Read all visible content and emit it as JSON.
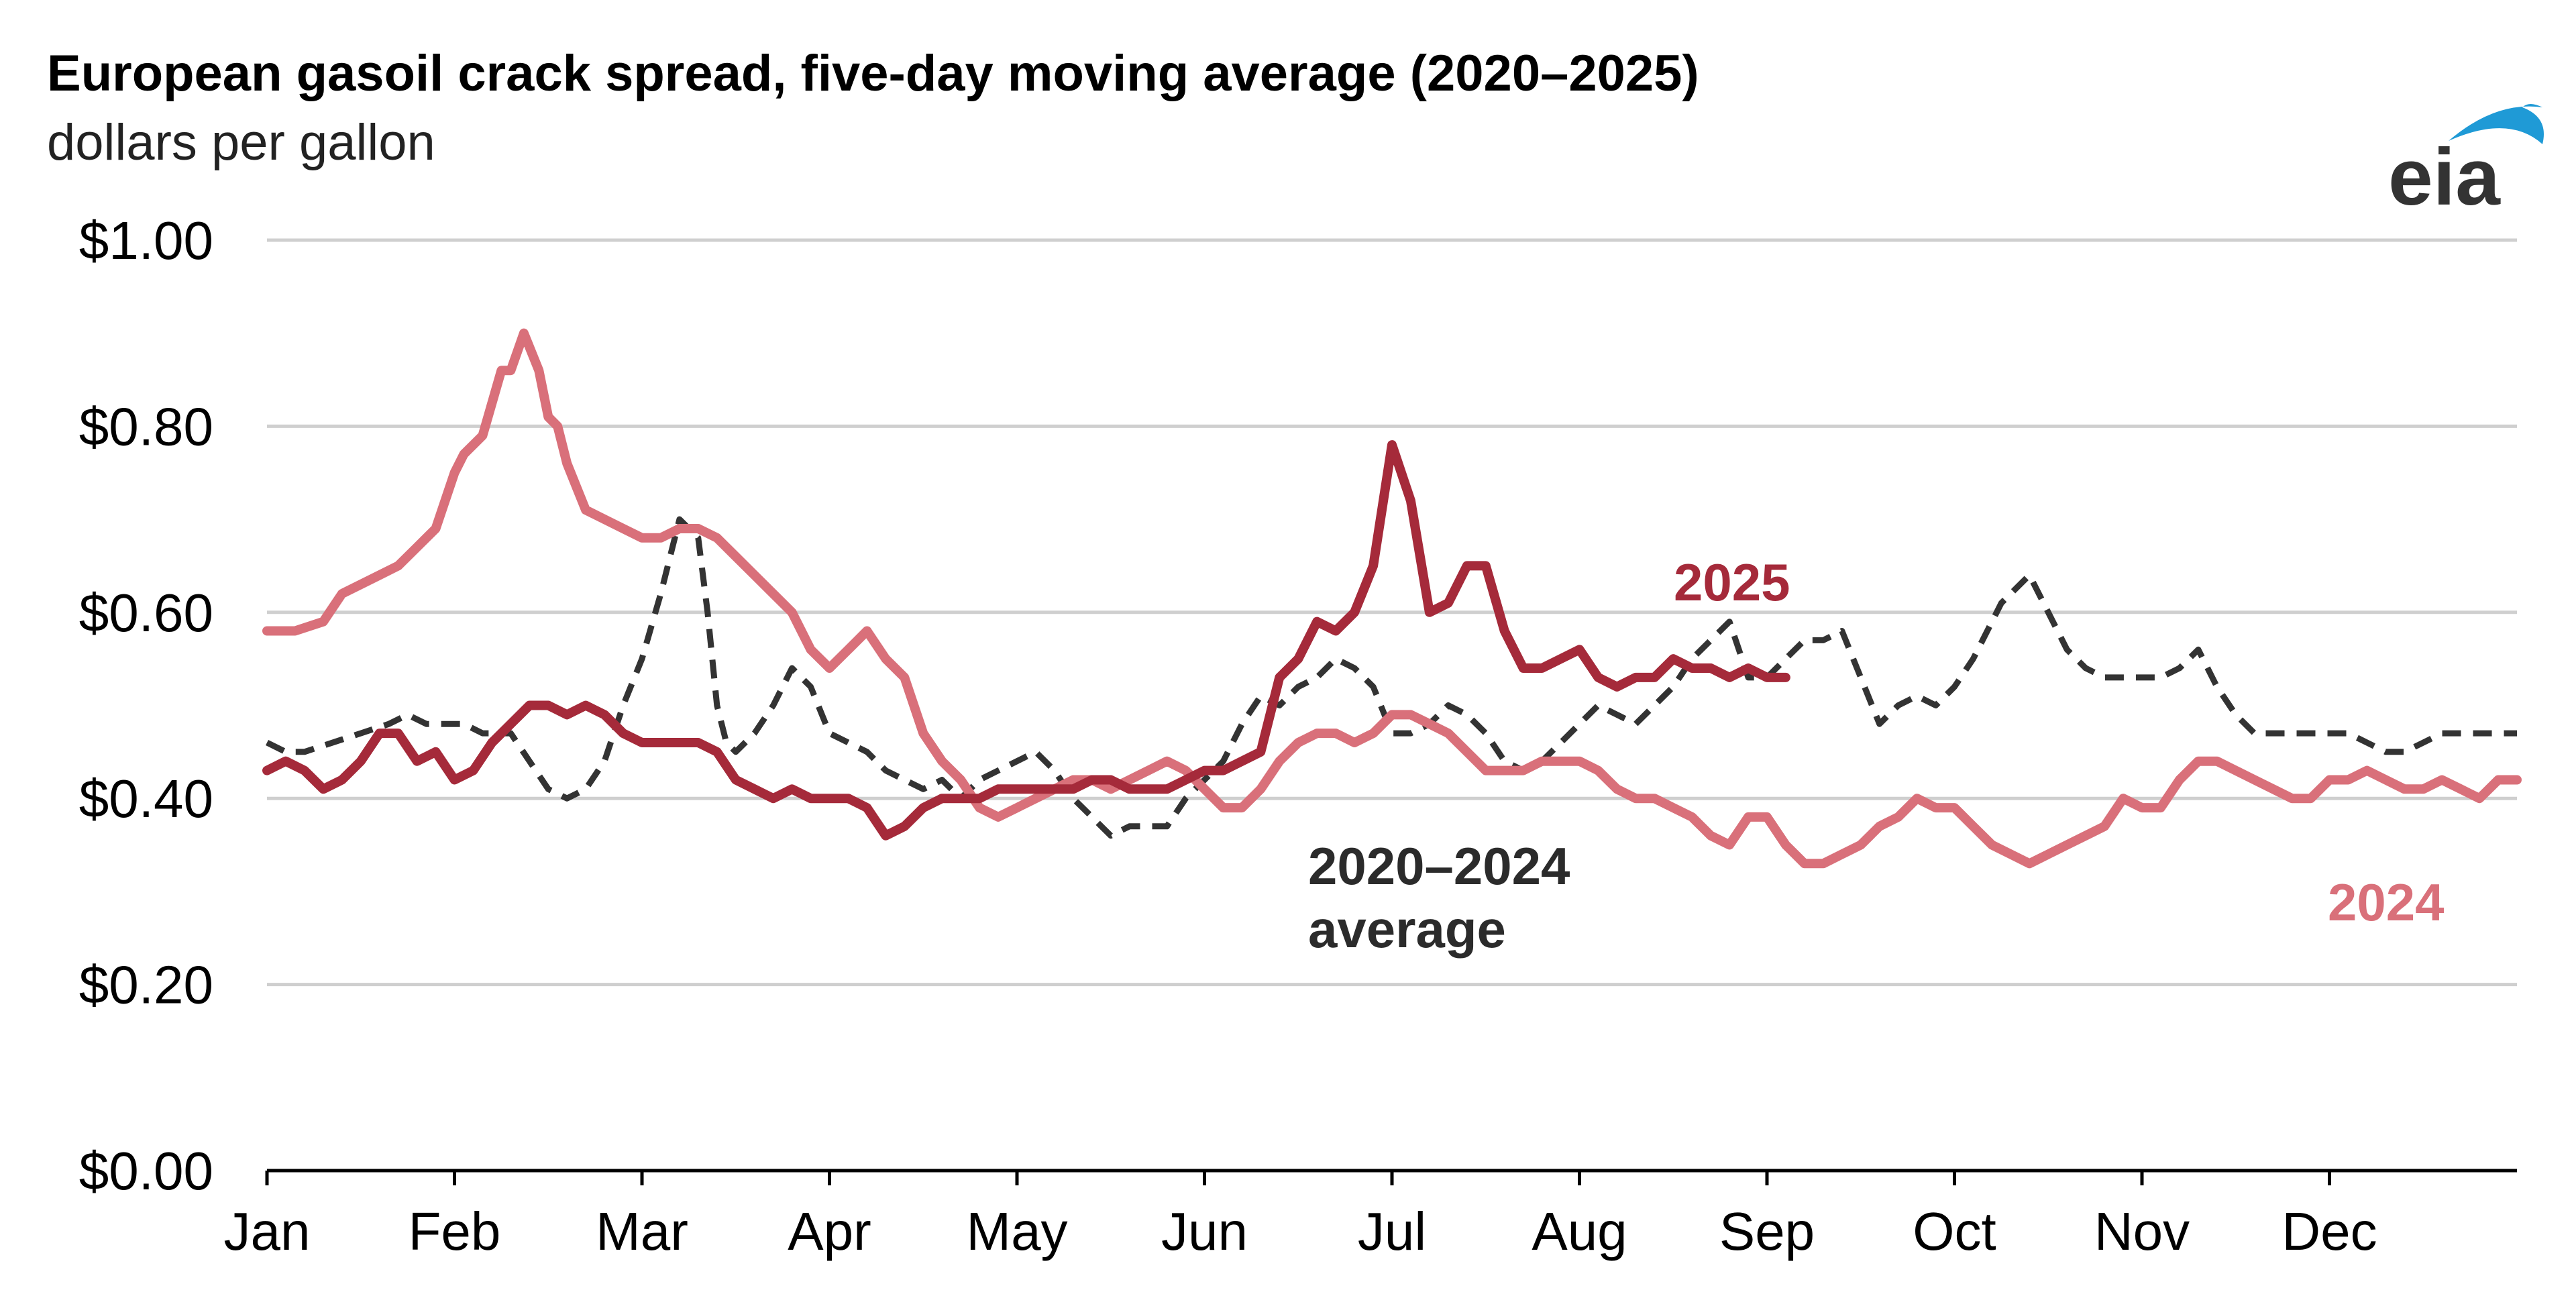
{
  "chart_data": {
    "type": "line",
    "title": "European gasoil crack spread, five-day moving average (2020–2025)",
    "subtitle": "dollars per gallon",
    "logo": "eia",
    "ylim": [
      0,
      1.0
    ],
    "yticks": [
      0.0,
      0.2,
      0.4,
      0.6,
      0.8,
      1.0
    ],
    "ytick_labels": [
      "$0.00",
      "$0.20",
      "$0.40",
      "$0.60",
      "$0.80",
      "$1.00"
    ],
    "xlim": [
      0,
      12
    ],
    "xtick_positions": [
      0,
      1,
      2,
      3,
      4,
      5,
      6,
      7,
      8,
      9,
      10,
      11
    ],
    "xtick_labels": [
      "Jan",
      "Feb",
      "Mar",
      "Apr",
      "May",
      "Jun",
      "Jul",
      "Aug",
      "Sep",
      "Oct",
      "Nov",
      "Dec"
    ],
    "grid": true,
    "series": [
      {
        "name": "2020–2024 average",
        "label_lines": [
          "2020–2024",
          "average"
        ],
        "color": "#333333",
        "style": "dashed",
        "x": [
          0,
          0.1,
          0.2,
          0.35,
          0.5,
          0.65,
          0.75,
          0.85,
          0.95,
          1.05,
          1.15,
          1.3,
          1.4,
          1.5,
          1.6,
          1.7,
          1.8,
          1.9,
          2.0,
          2.1,
          2.2,
          2.3,
          2.35,
          2.4,
          2.45,
          2.5,
          2.55,
          2.6,
          2.7,
          2.8,
          2.9,
          3.0,
          3.1,
          3.2,
          3.3,
          3.4,
          3.5,
          3.6,
          3.7,
          3.8,
          3.9,
          4.0,
          4.1,
          4.2,
          4.3,
          4.4,
          4.5,
          4.6,
          4.7,
          4.8,
          4.9,
          5.0,
          5.1,
          5.2,
          5.3,
          5.4,
          5.5,
          5.6,
          5.7,
          5.8,
          5.9,
          6.0,
          6.1,
          6.2,
          6.3,
          6.4,
          6.5,
          6.6,
          6.7,
          6.8,
          6.9,
          7.0,
          7.1,
          7.2,
          7.3,
          7.4,
          7.5,
          7.6,
          7.7,
          7.8,
          7.9,
          8.0,
          8.1,
          8.2,
          8.3,
          8.4,
          8.5,
          8.6,
          8.7,
          8.8,
          8.9,
          9.0,
          9.1,
          9.2,
          9.25,
          9.3,
          9.4,
          9.5,
          9.6,
          9.7,
          9.8,
          9.9,
          10.0,
          10.1,
          10.2,
          10.3,
          10.4,
          10.5,
          10.6,
          10.7,
          10.8,
          10.9,
          11.0,
          11.1,
          11.2,
          11.3,
          11.4,
          11.5,
          11.6,
          11.7,
          11.8,
          11.9,
          12.0
        ],
        "y": [
          0.46,
          0.45,
          0.45,
          0.46,
          0.47,
          0.48,
          0.49,
          0.48,
          0.48,
          0.48,
          0.47,
          0.47,
          0.44,
          0.41,
          0.4,
          0.41,
          0.44,
          0.5,
          0.55,
          0.62,
          0.7,
          0.68,
          0.6,
          0.5,
          0.46,
          0.45,
          0.46,
          0.47,
          0.5,
          0.54,
          0.52,
          0.47,
          0.46,
          0.45,
          0.43,
          0.42,
          0.41,
          0.42,
          0.4,
          0.42,
          0.43,
          0.44,
          0.45,
          0.43,
          0.4,
          0.38,
          0.36,
          0.37,
          0.37,
          0.37,
          0.4,
          0.42,
          0.44,
          0.48,
          0.51,
          0.5,
          0.52,
          0.53,
          0.55,
          0.54,
          0.52,
          0.47,
          0.47,
          0.48,
          0.5,
          0.49,
          0.47,
          0.44,
          0.43,
          0.44,
          0.46,
          0.48,
          0.5,
          0.49,
          0.48,
          0.5,
          0.52,
          0.55,
          0.57,
          0.59,
          0.53,
          0.53,
          0.55,
          0.57,
          0.57,
          0.58,
          0.53,
          0.48,
          0.5,
          0.51,
          0.5,
          0.52,
          0.55,
          0.59,
          0.61,
          0.62,
          0.64,
          0.6,
          0.56,
          0.54,
          0.53,
          0.53,
          0.53,
          0.53,
          0.54,
          0.56,
          0.52,
          0.49,
          0.47,
          0.47,
          0.47,
          0.47,
          0.47,
          0.47,
          0.46,
          0.45,
          0.45,
          0.46,
          0.47,
          0.47,
          0.47,
          0.47,
          0.47
        ]
      },
      {
        "name": "2024",
        "label_lines": [
          "2024"
        ],
        "color": "#d9707a",
        "style": "solid",
        "x": [
          0,
          0.15,
          0.3,
          0.4,
          0.5,
          0.6,
          0.7,
          0.8,
          0.9,
          1.0,
          1.05,
          1.15,
          1.25,
          1.3,
          1.37,
          1.45,
          1.5,
          1.55,
          1.6,
          1.7,
          1.8,
          1.9,
          2.0,
          2.1,
          2.2,
          2.3,
          2.4,
          2.5,
          2.6,
          2.7,
          2.8,
          2.9,
          3.0,
          3.1,
          3.2,
          3.3,
          3.4,
          3.5,
          3.6,
          3.7,
          3.8,
          3.9,
          4.0,
          4.1,
          4.2,
          4.3,
          4.4,
          4.5,
          4.6,
          4.7,
          4.8,
          4.9,
          5.0,
          5.1,
          5.2,
          5.3,
          5.4,
          5.5,
          5.6,
          5.7,
          5.8,
          5.9,
          6.0,
          6.1,
          6.2,
          6.3,
          6.4,
          6.5,
          6.6,
          6.7,
          6.8,
          6.9,
          7.0,
          7.1,
          7.2,
          7.3,
          7.4,
          7.5,
          7.6,
          7.7,
          7.8,
          7.9,
          8.0,
          8.1,
          8.2,
          8.3,
          8.4,
          8.5,
          8.6,
          8.7,
          8.8,
          8.9,
          9.0,
          9.1,
          9.2,
          9.3,
          9.4,
          9.5,
          9.6,
          9.7,
          9.8,
          9.9,
          10.0,
          10.1,
          10.2,
          10.3,
          10.4,
          10.5,
          10.6,
          10.7,
          10.8,
          10.9,
          11.0,
          11.1,
          11.2,
          11.3,
          11.4,
          11.5,
          11.6,
          11.7,
          11.8,
          11.9,
          12.0
        ],
        "y": [
          0.58,
          0.58,
          0.59,
          0.62,
          0.63,
          0.64,
          0.65,
          0.67,
          0.69,
          0.75,
          0.77,
          0.79,
          0.86,
          0.86,
          0.9,
          0.86,
          0.81,
          0.8,
          0.76,
          0.71,
          0.7,
          0.69,
          0.68,
          0.68,
          0.69,
          0.69,
          0.68,
          0.66,
          0.64,
          0.62,
          0.6,
          0.56,
          0.54,
          0.56,
          0.58,
          0.55,
          0.53,
          0.47,
          0.44,
          0.42,
          0.39,
          0.38,
          0.39,
          0.4,
          0.41,
          0.42,
          0.42,
          0.41,
          0.42,
          0.43,
          0.44,
          0.43,
          0.41,
          0.39,
          0.39,
          0.41,
          0.44,
          0.46,
          0.47,
          0.47,
          0.46,
          0.47,
          0.49,
          0.49,
          0.48,
          0.47,
          0.45,
          0.43,
          0.43,
          0.43,
          0.44,
          0.44,
          0.44,
          0.43,
          0.41,
          0.4,
          0.4,
          0.39,
          0.38,
          0.36,
          0.35,
          0.38,
          0.38,
          0.35,
          0.33,
          0.33,
          0.34,
          0.35,
          0.37,
          0.38,
          0.4,
          0.39,
          0.39,
          0.37,
          0.35,
          0.34,
          0.33,
          0.34,
          0.35,
          0.36,
          0.37,
          0.4,
          0.39,
          0.39,
          0.42,
          0.44,
          0.44,
          0.43,
          0.42,
          0.41,
          0.4,
          0.4,
          0.42,
          0.42,
          0.43,
          0.42,
          0.41,
          0.41,
          0.42,
          0.41,
          0.4,
          0.42,
          0.42
        ]
      },
      {
        "name": "2025",
        "label_lines": [
          "2025"
        ],
        "color": "#a52a3a",
        "style": "solid",
        "x": [
          0,
          0.1,
          0.2,
          0.3,
          0.4,
          0.5,
          0.6,
          0.7,
          0.8,
          0.9,
          1.0,
          1.1,
          1.2,
          1.3,
          1.4,
          1.5,
          1.6,
          1.7,
          1.8,
          1.9,
          2.0,
          2.1,
          2.2,
          2.3,
          2.4,
          2.5,
          2.6,
          2.7,
          2.8,
          2.9,
          3.0,
          3.1,
          3.2,
          3.3,
          3.4,
          3.5,
          3.6,
          3.7,
          3.8,
          3.9,
          4.0,
          4.1,
          4.2,
          4.3,
          4.4,
          4.5,
          4.6,
          4.7,
          4.8,
          4.9,
          5.0,
          5.1,
          5.2,
          5.3,
          5.4,
          5.5,
          5.6,
          5.7,
          5.8,
          5.9,
          6.0,
          6.1,
          6.2,
          6.3,
          6.4,
          6.5,
          6.6,
          6.7,
          6.8,
          6.9,
          7.0,
          7.1,
          7.2,
          7.3,
          7.4,
          7.5,
          7.6,
          7.7,
          7.8,
          7.9,
          8.0,
          8.1
        ],
        "y": [
          0.43,
          0.44,
          0.43,
          0.41,
          0.42,
          0.44,
          0.47,
          0.47,
          0.44,
          0.45,
          0.42,
          0.43,
          0.46,
          0.48,
          0.5,
          0.5,
          0.49,
          0.5,
          0.49,
          0.47,
          0.46,
          0.46,
          0.46,
          0.46,
          0.45,
          0.42,
          0.41,
          0.4,
          0.41,
          0.4,
          0.4,
          0.4,
          0.39,
          0.36,
          0.37,
          0.39,
          0.4,
          0.4,
          0.4,
          0.41,
          0.41,
          0.41,
          0.41,
          0.41,
          0.42,
          0.42,
          0.41,
          0.41,
          0.41,
          0.42,
          0.43,
          0.43,
          0.44,
          0.45,
          0.53,
          0.55,
          0.59,
          0.58,
          0.6,
          0.65,
          0.78,
          0.72,
          0.6,
          0.61,
          0.65,
          0.65,
          0.58,
          0.54,
          0.54,
          0.55,
          0.56,
          0.53,
          0.52,
          0.53,
          0.53,
          0.55,
          0.54,
          0.54,
          0.53,
          0.54,
          0.53,
          0.53
        ]
      }
    ]
  }
}
